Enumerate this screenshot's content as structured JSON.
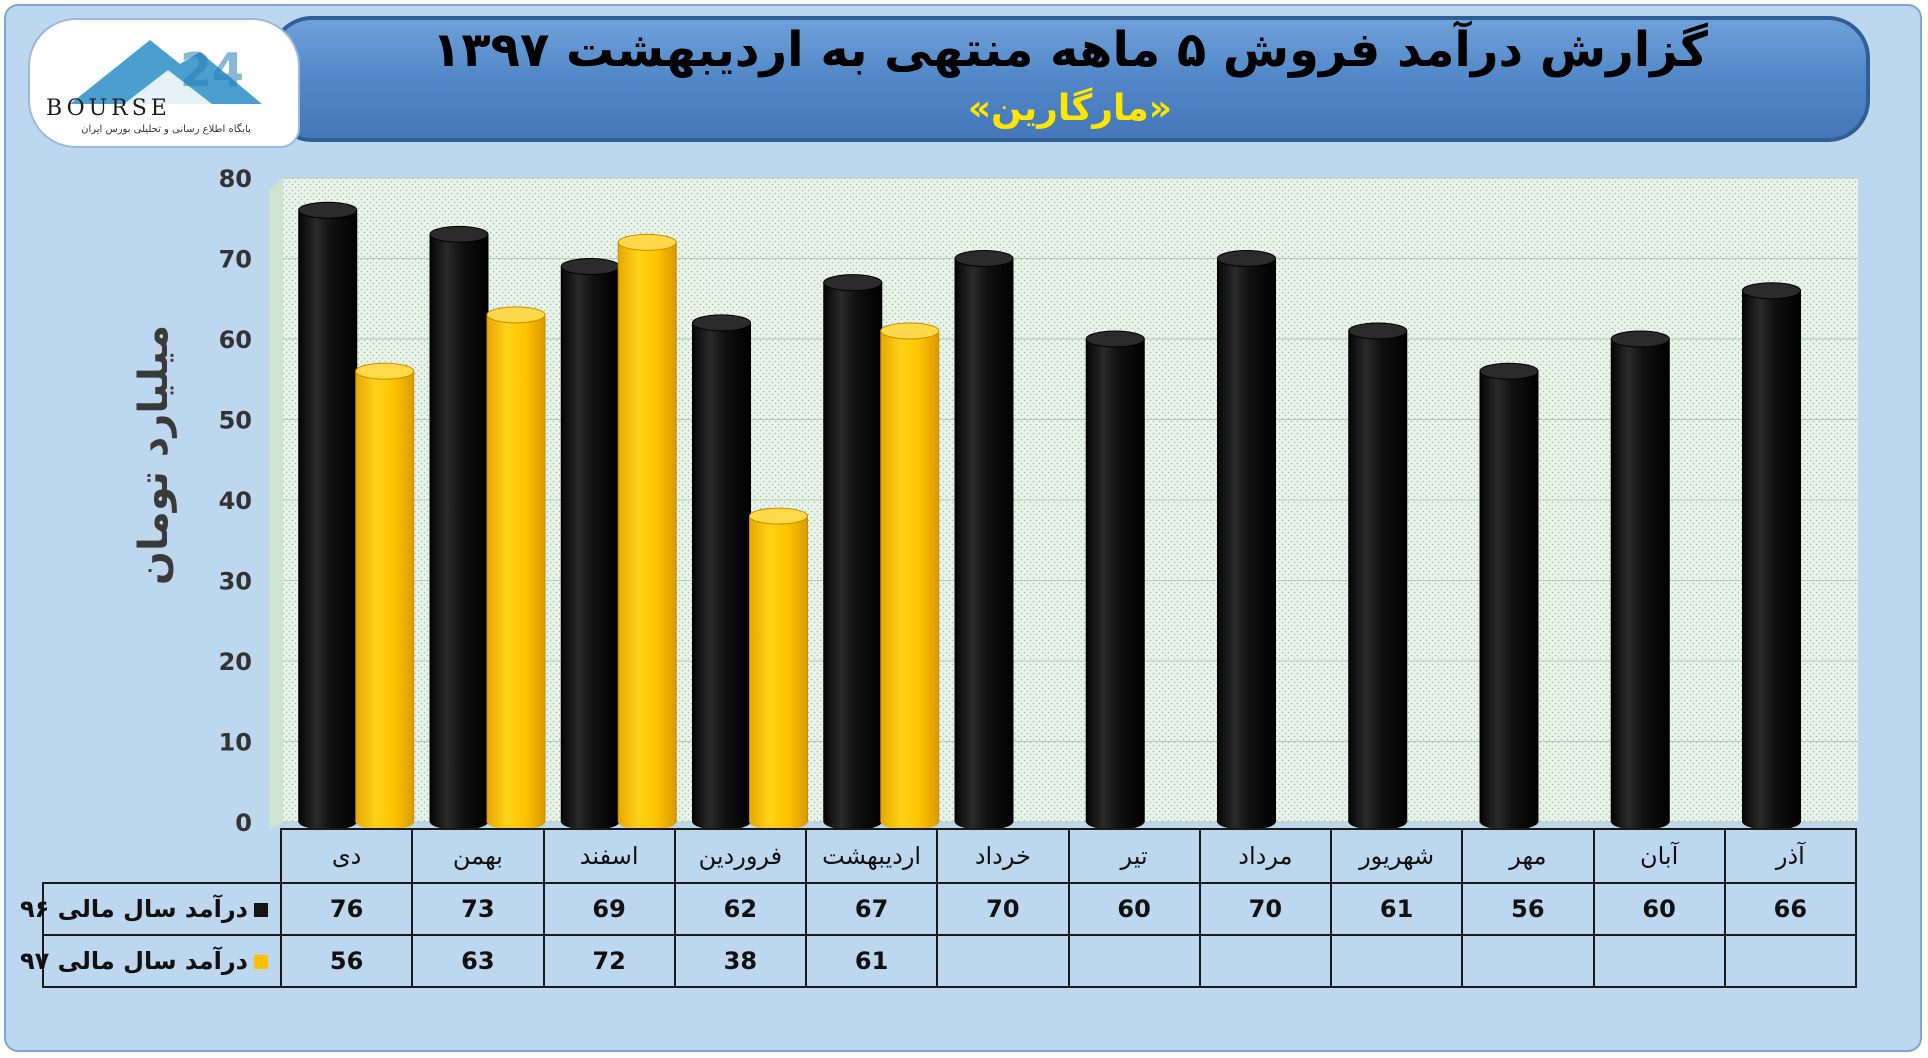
{
  "header": {
    "title": "گزارش درآمد فروش ۵ ماهه منتهی به اردیبهشت ۱۳۹۷",
    "subtitle": "«مارگارین»"
  },
  "logo": {
    "text": "BOURSE",
    "tagline": "پایگاه اطلاع رسانی و تحلیلی بورس ایران"
  },
  "colors": {
    "series_96": "#141414",
    "series_97": "#ffc000",
    "plot_bg": "#e8f2e9",
    "frame_bg": "#bdd7ee"
  },
  "chart_data": {
    "type": "bar",
    "ylabel": "میلیارد تومان",
    "ylim": [
      0,
      80
    ],
    "yticks": [
      0,
      10,
      20,
      30,
      40,
      50,
      60,
      70,
      80
    ],
    "grid": true,
    "categories": [
      "دی",
      "بهمن",
      "اسفند",
      "فروردین",
      "اردیبهشت",
      "خرداد",
      "تیر",
      "مرداد",
      "شهریور",
      "مهر",
      "آبان",
      "آذر"
    ],
    "series": [
      {
        "name": "درآمد سال مالی ۹۶",
        "values": [
          76,
          73,
          69,
          62,
          67,
          70,
          60,
          70,
          61,
          56,
          60,
          66
        ]
      },
      {
        "name": "درآمد سال مالی ۹۷",
        "values": [
          56,
          63,
          72,
          38,
          61,
          null,
          null,
          null,
          null,
          null,
          null,
          null
        ]
      }
    ]
  }
}
